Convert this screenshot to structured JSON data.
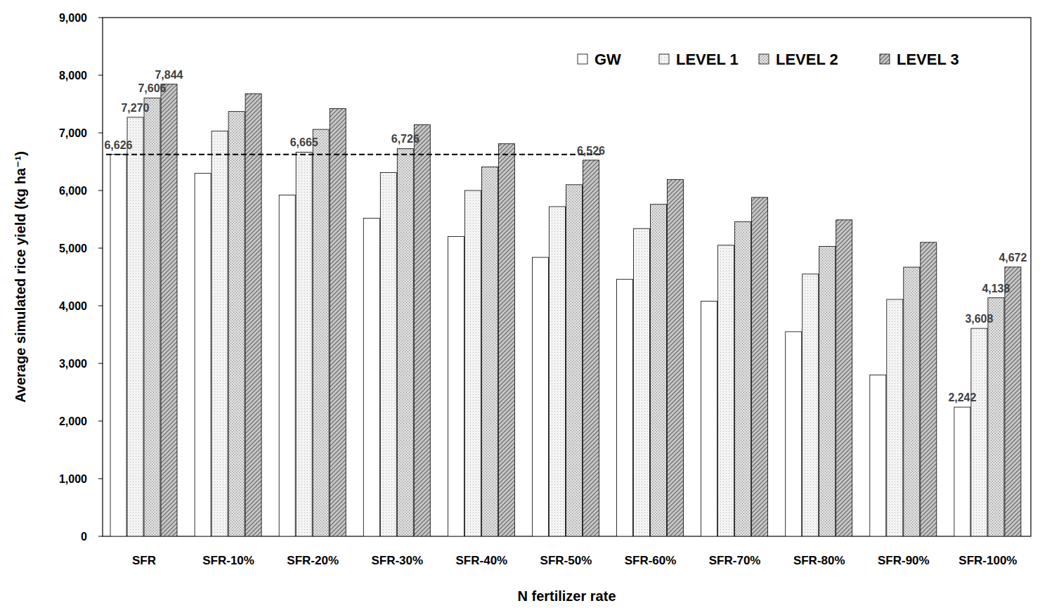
{
  "chart_data": {
    "type": "bar",
    "x_label": "N fertilizer rate",
    "y_label": "Average  simulated  rice  yield (kg ha⁻¹)",
    "categories": [
      "SFR",
      "SFR-10%",
      "SFR-20%",
      "SFR-30%",
      "SFR-40%",
      "SFR-50%",
      "SFR-60%",
      "SFR-70%",
      "SFR-80%",
      "SFR-90%",
      "SFR-100%"
    ],
    "series": [
      {
        "name": "GW",
        "color": "#ffffff",
        "values": [
          6626,
          6300,
          5920,
          5520,
          5200,
          4840,
          4460,
          4080,
          3550,
          2800,
          2242
        ],
        "value_labels": [
          "6,626",
          null,
          null,
          null,
          null,
          null,
          null,
          null,
          null,
          null,
          "2,242"
        ]
      },
      {
        "name": "LEVEL 1",
        "color": "#f4f4f4",
        "values": [
          7270,
          7030,
          6665,
          6310,
          6000,
          5720,
          5340,
          5050,
          4550,
          4110,
          3608
        ],
        "value_labels": [
          "7,270",
          null,
          "6,665",
          null,
          null,
          null,
          null,
          null,
          null,
          null,
          "3,608"
        ]
      },
      {
        "name": "LEVEL 2",
        "color": "#dcdcdc",
        "values": [
          7606,
          7370,
          7060,
          6726,
          6410,
          6100,
          5760,
          5460,
          5030,
          4670,
          4138
        ],
        "value_labels": [
          "7,606",
          null,
          null,
          "6,726",
          null,
          null,
          null,
          null,
          null,
          null,
          "4,138"
        ]
      },
      {
        "name": "LEVEL 3",
        "color": "#c8c8c8",
        "values": [
          7844,
          7680,
          7420,
          7140,
          6810,
          6526,
          6190,
          5880,
          5490,
          5100,
          4672
        ],
        "value_labels": [
          "7,844",
          null,
          null,
          null,
          null,
          "6,526",
          null,
          null,
          null,
          null,
          "4,672"
        ]
      }
    ],
    "reference_line": {
      "value": 6626,
      "from": "SFR",
      "to": "SFR-50%",
      "line_style": "dashed"
    },
    "ylim": [
      0,
      9000
    ],
    "yticks": [
      0,
      {
        "value": 1000,
        "label": "1,000"
      },
      {
        "value": 2000,
        "label": "2,000"
      },
      {
        "value": 3000,
        "label": "3,000"
      },
      {
        "value": 4000,
        "label": "4,000"
      },
      {
        "value": 5000,
        "label": "5,000"
      },
      {
        "value": 6000,
        "label": "6,000"
      },
      {
        "value": 7000,
        "label": "7,000"
      },
      {
        "value": 8000,
        "label": "8,000"
      },
      {
        "value": 9000,
        "label": "9,000"
      }
    ],
    "grid": false,
    "legend": "top-right",
    "data_labels": true
  }
}
